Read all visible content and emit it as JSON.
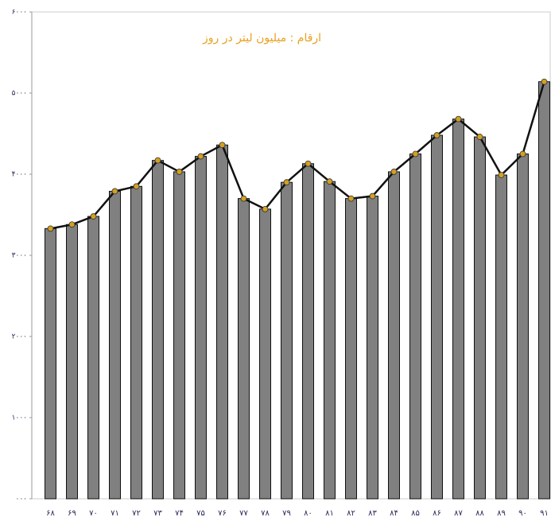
{
  "chart_data": {
    "type": "bar",
    "annotation": "ارقام : میلیون لیتر در روز",
    "categories": [
      "۶۸",
      "۶۹",
      "۷۰",
      "۷۱",
      "۷۲",
      "۷۳",
      "۷۴",
      "۷۵",
      "۷۶",
      "۷۷",
      "۷۸",
      "۷۹",
      "۸۰",
      "۸۱",
      "۸۲",
      "۸۳",
      "۸۴",
      "۸۵",
      "۸۶",
      "۸۷",
      "۸۸",
      "۸۹",
      "۹۰",
      "۹۱"
    ],
    "values": [
      3330,
      3380,
      3480,
      3790,
      3850,
      4170,
      4030,
      4220,
      4360,
      3700,
      3570,
      3900,
      4130,
      3910,
      3700,
      3730,
      4030,
      4250,
      4480,
      4680,
      4460,
      3990,
      4250,
      5140
    ],
    "color": "#808080",
    "line": true,
    "line_color": "#111111",
    "marker_color": "#d4a020",
    "ylim": [
      0,
      6000
    ],
    "yticks": [
      {
        "value": 0,
        "label": "۰۰۰"
      },
      {
        "value": 1000,
        "label": "۱۰۰۰"
      },
      {
        "value": 2000,
        "label": "۲۰۰۰"
      },
      {
        "value": 3000,
        "label": "۳۰۰۰"
      },
      {
        "value": 4000,
        "label": "۴۰۰۰"
      },
      {
        "value": 5000,
        "label": "۵۰۰۰"
      },
      {
        "value": 6000,
        "label": "۶۰۰۰"
      }
    ],
    "grid": false
  }
}
